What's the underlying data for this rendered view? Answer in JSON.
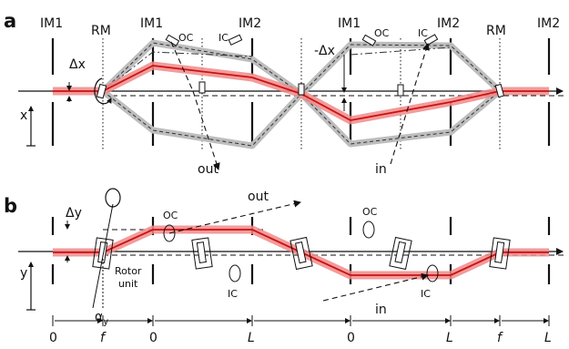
{
  "panel_a": {
    "label": "a",
    "top_labels": [
      "IM1",
      "RM",
      "IM1",
      "IM2",
      "IM1",
      "IM2",
      "RM",
      "IM2"
    ],
    "oc_left": "OC",
    "ic_left": "IC",
    "oc_right": "OC",
    "ic_right": "IC",
    "delta_x": "Δx",
    "neg_delta_x": "-Δx",
    "x_axis": "x",
    "out": "out",
    "in": "in"
  },
  "panel_b": {
    "label": "b",
    "delta_y": "Δy",
    "y_axis": "y",
    "alpha": "α",
    "alpha_sub": "y",
    "rotor_line1": "Rotor",
    "rotor_line2": "unit",
    "oc_left": "OC",
    "ic_left": "IC",
    "oc_right": "OC",
    "ic_right": "IC",
    "out": "out",
    "in": "in"
  },
  "scale": {
    "ticks": [
      "0",
      "f",
      "0",
      "L",
      "0",
      "L",
      "f",
      "L"
    ]
  },
  "colors": {
    "beam": "#cc1111",
    "beam_glow": "#f08a8a",
    "envelope": "#bdbdbd",
    "ink": "#111111"
  }
}
